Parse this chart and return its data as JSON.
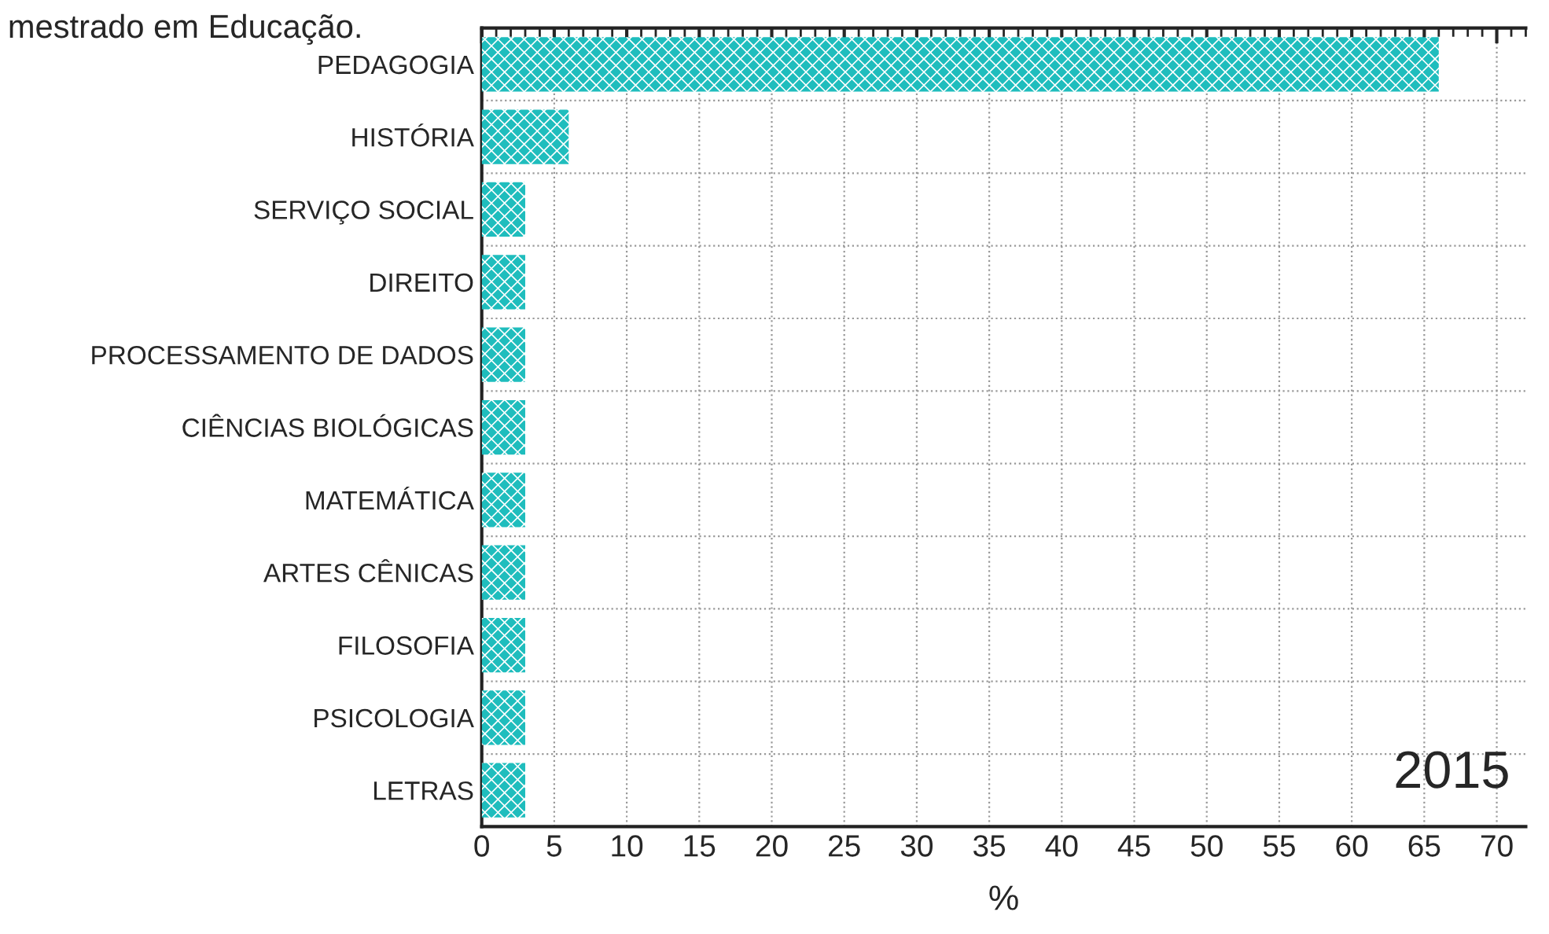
{
  "chart_data": {
    "type": "bar",
    "orientation": "horizontal",
    "title": "mestrado em Educação.",
    "xlabel": "%",
    "categories": [
      "PEDAGOGIA",
      "HISTÓRIA",
      "SERVIÇO SOCIAL",
      "DIREITO",
      "PROCESSAMENTO DE DADOS",
      "CIÊNCIAS BIOLÓGICAS",
      "MATEMÁTICA",
      "ARTES CÊNICAS",
      "FILOSOFIA",
      "PSICOLOGIA",
      "LETRAS"
    ],
    "values": [
      66,
      6,
      3,
      3,
      3,
      3,
      3,
      3,
      3,
      3,
      3
    ],
    "color": "#1fbdbd",
    "xlim": [
      0,
      72
    ],
    "xticks": [
      0,
      5,
      10,
      15,
      20,
      25,
      30,
      35,
      40,
      45,
      50,
      55,
      60,
      65,
      70
    ],
    "annotations": [
      "2015"
    ],
    "grid": true
  }
}
